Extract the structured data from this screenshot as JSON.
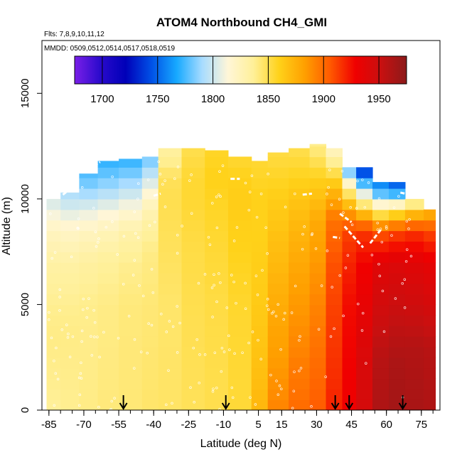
{
  "chart_data": {
    "type": "heatmap",
    "title": "ATOM4 Northbound CH4_GMI",
    "flights_note": "Flts: 7,8,9,10,11,12",
    "dates_note": "MMDD: 0509,0512,0514,0517,0518,0519",
    "xlabel": "Latitude (deg N)",
    "ylabel": "Altitude (m)",
    "xlim": [
      -88,
      83
    ],
    "ylim": [
      0,
      17500
    ],
    "x_ticks": [
      -85,
      -70,
      -55,
      -40,
      -25,
      -10,
      5,
      15,
      30,
      45,
      60,
      75
    ],
    "y_ticks": [
      0,
      5000,
      10000,
      15000
    ],
    "colorbar": {
      "min": 1675,
      "max": 1975,
      "ticks": [
        1700,
        1750,
        1800,
        1850,
        1900,
        1950
      ],
      "colors": [
        "#7a1fe8",
        "#2a0acc",
        "#0000b8",
        "#0050e6",
        "#17a9ff",
        "#a8dcff",
        "#fff6d8",
        "#fff099",
        "#ffd21a",
        "#ffa000",
        "#ff5a00",
        "#f00000",
        "#c81010",
        "#8b1a1a"
      ]
    },
    "flight_path_arrows_latitudes": [
      -53,
      -9,
      38,
      44,
      67
    ],
    "field": {
      "columns": [
        {
          "lat": [
            -86,
            -80
          ],
          "top": 10000,
          "profile": [
            [
              0,
              1836
            ],
            [
              1000,
              1838
            ],
            [
              3500,
              1840
            ],
            [
              5000,
              1838
            ],
            [
              7000,
              1832
            ],
            [
              8500,
              1822
            ],
            [
              9500,
              1808
            ],
            [
              10500,
              1795
            ]
          ]
        },
        {
          "lat": [
            -80,
            -72
          ],
          "top": 10300,
          "profile": [
            [
              0,
              1838
            ],
            [
              3500,
              1840
            ],
            [
              5000,
              1838
            ],
            [
              7000,
              1832
            ],
            [
              8500,
              1820
            ],
            [
              9500,
              1804
            ],
            [
              10500,
              1788
            ]
          ]
        },
        {
          "lat": [
            -72,
            -64
          ],
          "top": 11200,
          "profile": [
            [
              0,
              1840
            ],
            [
              5000,
              1839
            ],
            [
              7000,
              1834
            ],
            [
              8500,
              1822
            ],
            [
              9500,
              1806
            ],
            [
              10500,
              1786
            ],
            [
              11200,
              1775
            ]
          ]
        },
        {
          "lat": [
            -64,
            -55
          ],
          "top": 11800,
          "profile": [
            [
              0,
              1842
            ],
            [
              5000,
              1840
            ],
            [
              7000,
              1836
            ],
            [
              8500,
              1825
            ],
            [
              9500,
              1810
            ],
            [
              10500,
              1790
            ],
            [
              11800,
              1770
            ]
          ]
        },
        {
          "lat": [
            -55,
            -45
          ],
          "top": 11900,
          "profile": [
            [
              0,
              1843
            ],
            [
              5000,
              1842
            ],
            [
              7000,
              1838
            ],
            [
              8500,
              1830
            ],
            [
              9500,
              1815
            ],
            [
              10500,
              1795
            ],
            [
              11900,
              1770
            ]
          ]
        },
        {
          "lat": [
            -45,
            -38
          ],
          "top": 12000,
          "profile": [
            [
              0,
              1845
            ],
            [
              5000,
              1843
            ],
            [
              7500,
              1840
            ],
            [
              9000,
              1832
            ],
            [
              10000,
              1820
            ],
            [
              11000,
              1800
            ],
            [
              12000,
              1780
            ]
          ]
        },
        {
          "lat": [
            -38,
            -28
          ],
          "top": 12400,
          "profile": [
            [
              0,
              1846
            ],
            [
              5000,
              1845
            ],
            [
              8000,
              1848
            ],
            [
              10000,
              1850
            ],
            [
              11000,
              1848
            ],
            [
              12000,
              1835
            ]
          ]
        },
        {
          "lat": [
            -28,
            -18
          ],
          "top": 12400,
          "profile": [
            [
              0,
              1848
            ],
            [
              5000,
              1850
            ],
            [
              8000,
              1852
            ],
            [
              10000,
              1855
            ],
            [
              11000,
              1855
            ],
            [
              12400,
              1850
            ]
          ]
        },
        {
          "lat": [
            -18,
            -8
          ],
          "top": 12300,
          "profile": [
            [
              0,
              1850
            ],
            [
              5000,
              1852
            ],
            [
              8000,
              1855
            ],
            [
              10000,
              1858
            ],
            [
              11000,
              1860
            ],
            [
              12300,
              1857
            ]
          ]
        },
        {
          "lat": [
            -8,
            2
          ],
          "top": 12000,
          "profile": [
            [
              0,
              1854
            ],
            [
              5000,
              1856
            ],
            [
              8000,
              1860
            ],
            [
              10000,
              1862
            ],
            [
              11000,
              1860
            ],
            [
              12000,
              1855
            ]
          ]
        },
        {
          "lat": [
            2,
            9
          ],
          "top": 11800,
          "profile": [
            [
              0,
              1872
            ],
            [
              3000,
              1866
            ],
            [
              6000,
              1862
            ],
            [
              8500,
              1860
            ],
            [
              10000,
              1860
            ],
            [
              11800,
              1855
            ]
          ]
        },
        {
          "lat": [
            9,
            18
          ],
          "top": 12200,
          "profile": [
            [
              0,
              1892
            ],
            [
              2000,
              1885
            ],
            [
              4000,
              1880
            ],
            [
              6000,
              1874
            ],
            [
              8000,
              1868
            ],
            [
              10000,
              1862
            ],
            [
              12200,
              1852
            ]
          ]
        },
        {
          "lat": [
            18,
            27
          ],
          "top": 12400,
          "profile": [
            [
              0,
              1900
            ],
            [
              2000,
              1895
            ],
            [
              4000,
              1888
            ],
            [
              6000,
              1882
            ],
            [
              8000,
              1875
            ],
            [
              10000,
              1866
            ],
            [
              12400,
              1850
            ]
          ]
        },
        {
          "lat": [
            27,
            34
          ],
          "top": 12600,
          "profile": [
            [
              0,
              1905
            ],
            [
              3000,
              1898
            ],
            [
              5000,
              1892
            ],
            [
              7000,
              1885
            ],
            [
              9000,
              1878
            ],
            [
              11000,
              1860
            ],
            [
              12600,
              1838
            ]
          ]
        },
        {
          "lat": [
            34,
            41
          ],
          "top": 12400,
          "profile": [
            [
              0,
              1920
            ],
            [
              3000,
              1915
            ],
            [
              5000,
              1912
            ],
            [
              7000,
              1908
            ],
            [
              9000,
              1898
            ],
            [
              10500,
              1870
            ],
            [
              12400,
              1820
            ]
          ]
        },
        {
          "lat": [
            41,
            47
          ],
          "top": 11500,
          "profile": [
            [
              0,
              1930
            ],
            [
              3000,
              1928
            ],
            [
              5000,
              1926
            ],
            [
              7000,
              1920
            ],
            [
              8500,
              1912
            ],
            [
              9500,
              1880
            ],
            [
              10500,
              1835
            ],
            [
              11500,
              1770
            ]
          ]
        },
        {
          "lat": [
            47,
            54
          ],
          "top": 11500,
          "profile": [
            [
              0,
              1945
            ],
            [
              2500,
              1942
            ],
            [
              5000,
              1934
            ],
            [
              7000,
              1928
            ],
            [
              8500,
              1915
            ],
            [
              9500,
              1860
            ],
            [
              10500,
              1790
            ],
            [
              11500,
              1730
            ]
          ]
        },
        {
          "lat": [
            54,
            61
          ],
          "top": 10800,
          "profile": [
            [
              0,
              1962
            ],
            [
              2500,
              1958
            ],
            [
              5000,
              1946
            ],
            [
              7000,
              1938
            ],
            [
              8500,
              1905
            ],
            [
              9500,
              1835
            ],
            [
              10500,
              1760
            ]
          ]
        },
        {
          "lat": [
            61,
            68
          ],
          "top": 10800,
          "profile": [
            [
              0,
              1966
            ],
            [
              2500,
              1962
            ],
            [
              5000,
              1950
            ],
            [
              7000,
              1940
            ],
            [
              8500,
              1910
            ],
            [
              9500,
              1845
            ],
            [
              10500,
              1750
            ]
          ]
        },
        {
          "lat": [
            68,
            76
          ],
          "top": 10000,
          "profile": [
            [
              0,
              1964
            ],
            [
              3000,
              1960
            ],
            [
              5000,
              1948
            ],
            [
              7000,
              1938
            ],
            [
              8500,
              1915
            ],
            [
              9500,
              1860
            ],
            [
              10000,
              1820
            ]
          ]
        },
        {
          "lat": [
            76,
            81
          ],
          "top": 9500,
          "profile": [
            [
              0,
              1962
            ],
            [
              3000,
              1958
            ],
            [
              5000,
              1945
            ],
            [
              7000,
              1935
            ],
            [
              8500,
              1910
            ],
            [
              9500,
              1870
            ]
          ]
        }
      ]
    }
  }
}
